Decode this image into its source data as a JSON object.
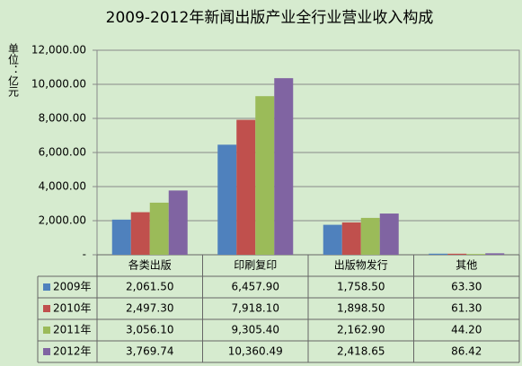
{
  "chart_data": {
    "type": "bar",
    "title": "2009-2012年新闻出版产业全行业营业收入构成",
    "y_label": "单位：亿元",
    "categories": [
      "各类出版",
      "印刷复印",
      "出版物发行",
      "其他"
    ],
    "series": [
      {
        "name": "2009年",
        "color": "#4f81bd",
        "values": [
          2061.5,
          6457.9,
          1758.5,
          63.3
        ],
        "value_labels": [
          "2,061.50",
          "6,457.90",
          "1,758.50",
          "63.30"
        ]
      },
      {
        "name": "2010年",
        "color": "#c0504d",
        "values": [
          2497.3,
          7918.1,
          1898.5,
          61.3
        ],
        "value_labels": [
          "2,497.30",
          "7,918.10",
          "1,898.50",
          "61.30"
        ]
      },
      {
        "name": "2011年",
        "color": "#9bbb59",
        "values": [
          3056.1,
          9305.4,
          2162.9,
          44.2
        ],
        "value_labels": [
          "3,056.10",
          "9,305.40",
          "2,162.90",
          "44.20"
        ]
      },
      {
        "name": "2012年",
        "color": "#8064a2",
        "values": [
          3769.74,
          10360.49,
          2418.65,
          86.42
        ],
        "value_labels": [
          "3,769.74",
          "10,360.49",
          "2,418.65",
          "86.42"
        ]
      }
    ],
    "ylim": [
      0,
      12000
    ],
    "yticks": [
      {
        "value": 0,
        "label": "-"
      },
      {
        "value": 2000,
        "label": "2,000.00"
      },
      {
        "value": 4000,
        "label": "4,000.00"
      },
      {
        "value": 6000,
        "label": "6,000.00"
      },
      {
        "value": 8000,
        "label": "8,000.00"
      },
      {
        "value": 10000,
        "label": "10,000.00"
      },
      {
        "value": 12000,
        "label": "12,000.00"
      }
    ],
    "grid": true
  }
}
